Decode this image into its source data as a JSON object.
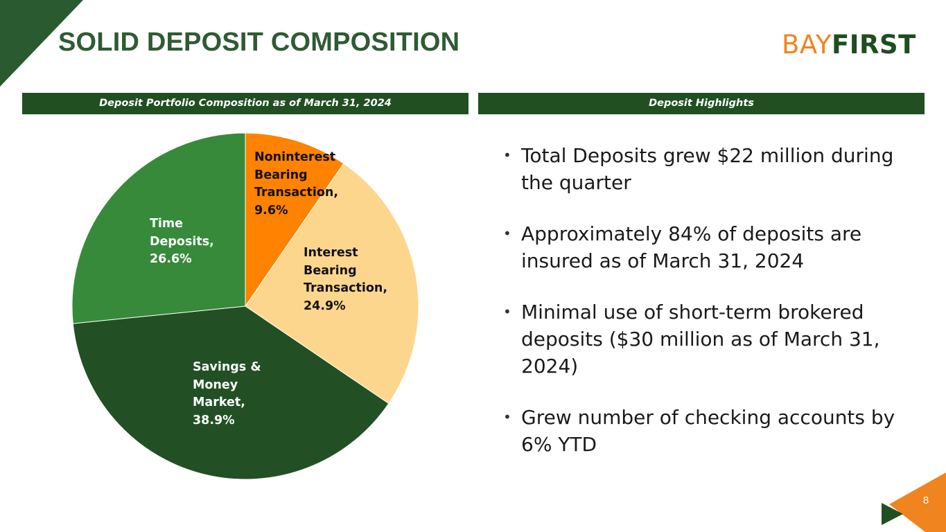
{
  "slide": {
    "title": "SOLID DEPOSIT COMPOSITION",
    "page_number": "8"
  },
  "logo": {
    "part1": "BAY",
    "part2": "FIRST"
  },
  "headers": {
    "left": "Deposit Portfolio Composition as of March 31, 2024",
    "right": "Deposit Highlights"
  },
  "colors": {
    "dark_green": "#214f22",
    "title_green": "#2e5a34",
    "accent_orange": "#f0841f"
  },
  "chart_data": {
    "type": "pie",
    "title": "Deposit Portfolio Composition as of March 31, 2024",
    "slices": [
      {
        "name": "Noninterest Bearing Transaction",
        "value": 9.6,
        "label_lines": [
          "Noninterest",
          "Bearing",
          "Transaction,",
          "9.6%"
        ],
        "color": "#ff8200",
        "label_color": "#111111"
      },
      {
        "name": "Interest Bearing Transaction",
        "value": 24.9,
        "label_lines": [
          "Interest",
          "Bearing",
          "Transaction,",
          "24.9%"
        ],
        "color": "#fdd68d",
        "label_color": "#111111"
      },
      {
        "name": "Savings & Money Market",
        "value": 38.9,
        "label_lines": [
          "Savings &",
          "Money",
          "Market,",
          "38.9%"
        ],
        "color": "#225024",
        "label_color": "#ffffff"
      },
      {
        "name": "Time Deposits",
        "value": 26.6,
        "label_lines": [
          "Time",
          "Deposits,",
          "26.6%"
        ],
        "color": "#368a3a",
        "label_color": "#ffffff"
      }
    ]
  },
  "highlights": [
    "Total Deposits grew $22 million during the quarter",
    "Approximately 84% of deposits are insured as of March 31, 2024",
    "Minimal use of short-term brokered deposits ($30 million as of March 31, 2024)",
    "Grew number of checking accounts by 6% YTD"
  ]
}
